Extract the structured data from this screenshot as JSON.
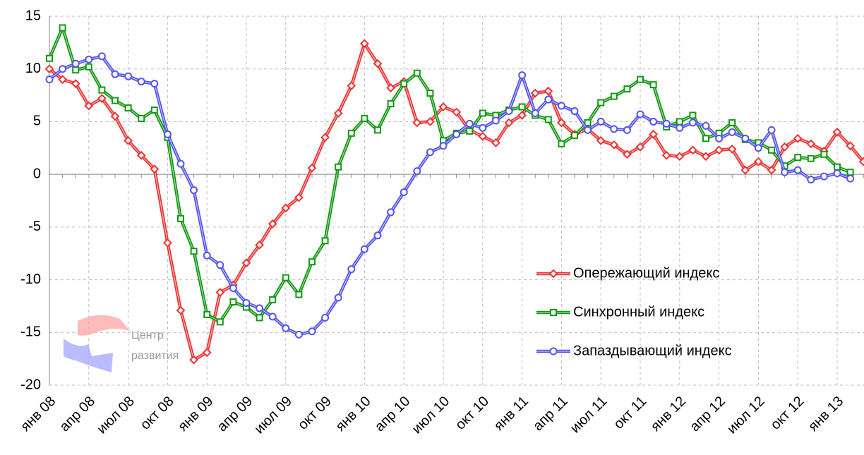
{
  "chart_data": {
    "type": "line",
    "categories": [
      "янв 08",
      null,
      null,
      "апр 08",
      null,
      null,
      "июл 08",
      null,
      null,
      "окт 08",
      null,
      null,
      "янв 09",
      null,
      null,
      "апр 09",
      null,
      null,
      "июл 09",
      null,
      null,
      "окт 09",
      null,
      null,
      "янв 10",
      null,
      null,
      "апр 10",
      null,
      null,
      "июл 10",
      null,
      null,
      "окт 10",
      null,
      null,
      "янв 11",
      null,
      null,
      "апр 11",
      null,
      null,
      "июл 11",
      null,
      null,
      "окт 11",
      null,
      null,
      "янв 12",
      null,
      null,
      "апр 12",
      null,
      null,
      "июл 12",
      null,
      null,
      "окт 12",
      null,
      null,
      "янв 13",
      null,
      null
    ],
    "series": [
      {
        "name": "Опережающий индекс",
        "color": "#ee3333",
        "marker": "diamond",
        "values": [
          10.0,
          9.0,
          8.6,
          6.5,
          7.2,
          5.5,
          3.2,
          1.8,
          0.5,
          -6.5,
          -12.9,
          -17.6,
          -16.9,
          -11.2,
          -10.5,
          -8.4,
          -6.7,
          -4.7,
          -3.2,
          -2.2,
          0.6,
          3.5,
          5.8,
          8.4,
          12.4,
          10.5,
          8.2,
          8.8,
          4.9,
          5.0,
          6.4,
          5.9,
          4.2,
          3.6,
          3.0,
          4.9,
          5.6,
          7.7,
          7.9,
          4.9,
          3.8,
          4.3,
          3.2,
          2.8,
          1.9,
          2.6,
          3.8,
          1.8,
          1.7,
          2.3,
          1.7,
          2.3,
          2.4,
          0.4,
          1.2,
          0.4,
          2.6,
          3.4,
          2.9,
          2.2,
          4.0,
          2.7,
          1.2
        ]
      },
      {
        "name": "Синхронный индекс",
        "color": "#119911",
        "marker": "square",
        "values": [
          11.0,
          13.9,
          9.9,
          10.2,
          8.0,
          7.0,
          6.3,
          5.3,
          6.1,
          3.5,
          -4.2,
          -7.3,
          -13.3,
          -14.0,
          -12.1,
          -12.6,
          -13.6,
          -11.9,
          -9.8,
          -11.4,
          -8.3,
          -6.3,
          0.7,
          3.9,
          5.3,
          4.2,
          6.7,
          8.6,
          9.6,
          7.7,
          3.2,
          3.9,
          4.1,
          5.8,
          5.6,
          6.1,
          6.4,
          5.6,
          5.2,
          2.9,
          3.7,
          4.9,
          6.8,
          7.4,
          8.1,
          9.0,
          8.5,
          4.5,
          5.0,
          5.6,
          3.4,
          3.9,
          4.9,
          3.3,
          3.0,
          2.3,
          0.8,
          1.6,
          1.5,
          1.9,
          0.7,
          0.2,
          null
        ]
      },
      {
        "name": "Запаздывающий индекс",
        "color": "#5555ee",
        "marker": "circle",
        "values": [
          9.0,
          10.0,
          10.5,
          10.9,
          11.2,
          9.5,
          9.3,
          8.8,
          8.6,
          3.8,
          1.0,
          -1.5,
          -7.7,
          -8.6,
          -10.8,
          -12.2,
          -12.7,
          -13.5,
          -14.6,
          -15.2,
          -14.9,
          -13.6,
          -11.7,
          -9.0,
          -7.1,
          -5.8,
          -3.6,
          -1.7,
          0.3,
          2.1,
          2.7,
          3.8,
          4.8,
          4.4,
          5.1,
          6.0,
          9.4,
          5.8,
          7.1,
          6.5,
          6.0,
          4.2,
          5.0,
          4.3,
          4.2,
          5.7,
          5.0,
          4.8,
          4.4,
          4.9,
          4.6,
          3.4,
          4.0,
          3.4,
          2.5,
          4.2,
          0.2,
          0.4,
          -0.5,
          -0.2,
          0.1,
          -0.4,
          null
        ]
      }
    ],
    "ylim": [
      -20,
      15
    ],
    "yticks": [
      -20,
      -15,
      -10,
      -5,
      0,
      5,
      10,
      15
    ],
    "grid": true,
    "legend": "lower right",
    "watermark": [
      "Центр",
      "развития"
    ]
  }
}
